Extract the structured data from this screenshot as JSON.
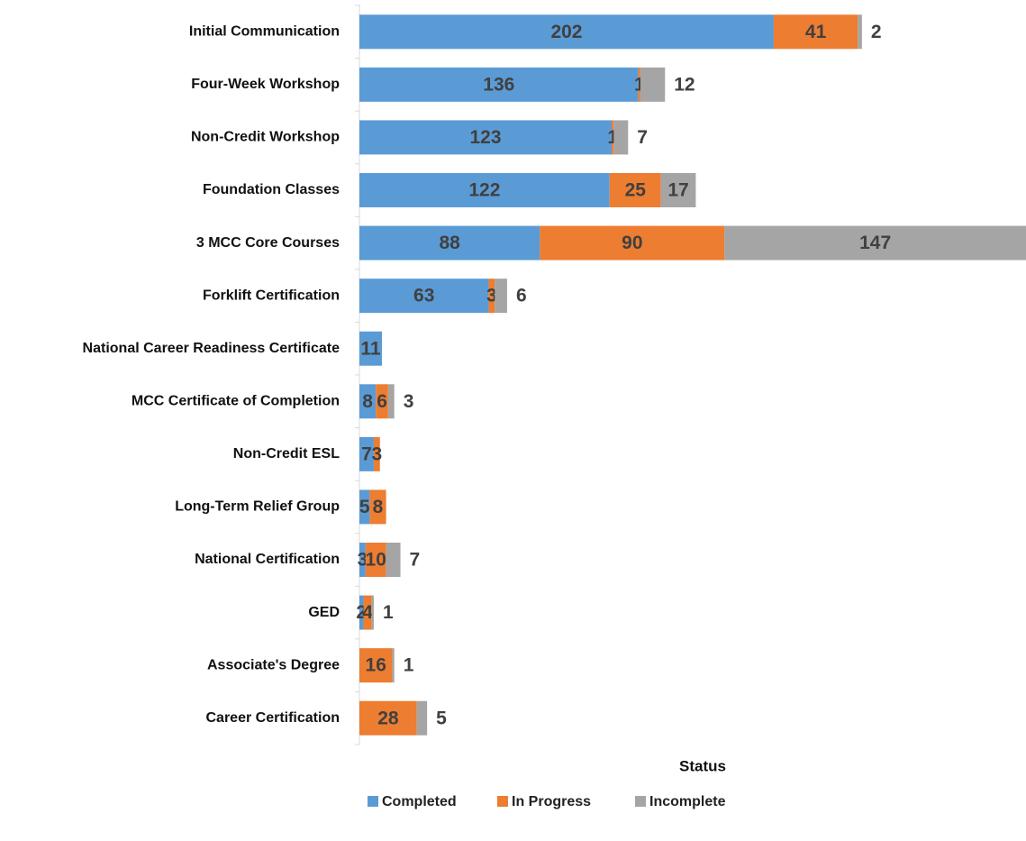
{
  "chart_data": {
    "type": "stacked-bar",
    "orientation": "horizontal",
    "x_label": "Status",
    "categories": [
      "Initial Communication",
      "Four-Week Workshop",
      "Non-Credit Workshop",
      "Foundation Classes",
      "3 MCC Core Courses",
      "Forklift Certification",
      "National Career Readiness Certificate",
      "MCC Certificate of Completion",
      "Non-Credit ESL",
      "Long-Term Relief Group",
      "National Certification",
      "GED",
      "Associate's Degree",
      "Career Certification"
    ],
    "series": [
      {
        "name": "Completed",
        "color": "#5b9bd5",
        "values": [
          202,
          136,
          123,
          122,
          88,
          63,
          11,
          8,
          7,
          5,
          3,
          2,
          null,
          null
        ]
      },
      {
        "name": "In Progress",
        "color": "#ed7d31",
        "values": [
          41,
          1,
          1,
          25,
          90,
          3,
          null,
          6,
          3,
          8,
          10,
          4,
          16,
          28
        ]
      },
      {
        "name": "Incomplete",
        "color": "#a5a5a5",
        "values": [
          2,
          12,
          7,
          17,
          147,
          6,
          null,
          3,
          null,
          null,
          7,
          1,
          1,
          5
        ]
      }
    ],
    "legend": "bottom"
  }
}
